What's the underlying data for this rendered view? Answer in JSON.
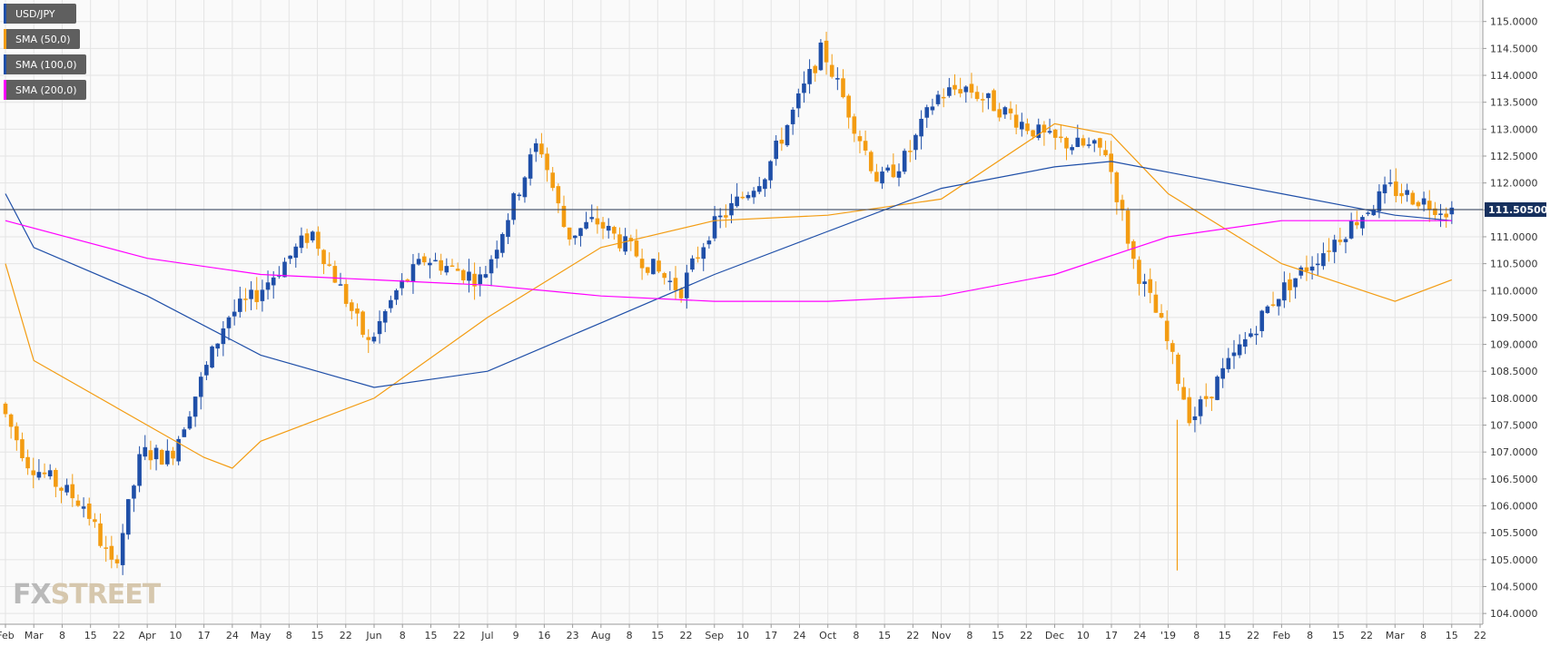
{
  "legend": [
    {
      "label": "USD/JPY",
      "color": "#1f4fa8"
    },
    {
      "label": "SMA (50,0)",
      "color": "#f39c12"
    },
    {
      "label": "SMA (100,0)",
      "color": "#1f4fa8"
    },
    {
      "label": "SMA (200,0)",
      "color": "#ff00ff"
    }
  ],
  "watermark": {
    "part1": "FX",
    "part2": "STREET"
  },
  "colors": {
    "background": "#ffffff",
    "plot_bg": "#fafafa",
    "grid": "#e4e4e4",
    "up": "#1f4fa8",
    "down": "#f39c12",
    "sma50": "#f39c12",
    "sma100": "#1f4fa8",
    "sma200": "#ff00ff",
    "price_line": "#2b3a55",
    "price_label_bg": "#16305e"
  },
  "chart_data": {
    "type": "line",
    "symbol": "USD/JPY",
    "ylim": [
      103.8,
      115.4
    ],
    "y_ticks": [
      "115.0000",
      "114.5000",
      "114.0000",
      "113.5000",
      "113.0000",
      "112.5000",
      "112.0000",
      "111.5000",
      "111.0000",
      "110.5000",
      "110.0000",
      "109.5000",
      "109.0000",
      "108.5000",
      "108.0000",
      "107.5000",
      "107.0000",
      "106.5000",
      "106.0000",
      "105.5000",
      "105.0000",
      "104.5000",
      "104.0000"
    ],
    "x_ticks": [
      "Feb",
      "Mar",
      "8",
      "15",
      "22",
      "Apr",
      "10",
      "17",
      "24",
      "May",
      "8",
      "15",
      "22",
      "Jun",
      "8",
      "15",
      "22",
      "Jul",
      "9",
      "16",
      "23",
      "Aug",
      "8",
      "15",
      "22",
      "Sep",
      "10",
      "17",
      "24",
      "Oct",
      "8",
      "15",
      "22",
      "Nov",
      "8",
      "15",
      "22",
      "Dec",
      "10",
      "17",
      "24",
      "'19",
      "8",
      "15",
      "22",
      "Feb",
      "8",
      "15",
      "22",
      "Mar",
      "8",
      "15",
      "22"
    ],
    "current_price": {
      "label": "111.50500",
      "value": 111.505
    },
    "candles_trend": {
      "name": "USD/JPY",
      "x": [
        "Feb",
        "Mar",
        "15",
        "22",
        "Apr",
        "10",
        "24",
        "May",
        "15",
        "Jun",
        "8",
        "15",
        "Jul",
        "16",
        "23",
        "Aug",
        "22",
        "Sep",
        "17",
        "Oct",
        "15",
        "22",
        "Nov",
        "8",
        "Dec",
        "17",
        "24",
        "'19",
        "8",
        "Feb",
        "Mar",
        "15"
      ],
      "values": [
        107.9,
        106.8,
        106.0,
        104.8,
        107.0,
        106.9,
        109.5,
        109.9,
        111.1,
        109.0,
        110.0,
        110.6,
        110.2,
        112.8,
        111.0,
        111.3,
        110.0,
        111.1,
        112.2,
        114.5,
        112.0,
        112.5,
        113.6,
        113.8,
        112.8,
        112.6,
        110.5,
        109.3,
        107.6,
        109.9,
        111.9,
        111.5
      ]
    },
    "series": [
      {
        "name": "SMA (50,0)",
        "x": [
          "Feb",
          "Mar",
          "Apr",
          "17",
          "24",
          "May",
          "Jun",
          "Jul",
          "Aug",
          "Sep",
          "Oct",
          "Nov",
          "Dec",
          "17",
          "'19",
          "Feb",
          "Mar",
          "15"
        ],
        "values": [
          110.5,
          108.7,
          107.5,
          106.9,
          106.7,
          107.2,
          108.0,
          109.5,
          110.8,
          111.3,
          111.4,
          111.7,
          113.1,
          112.9,
          111.8,
          110.5,
          109.8,
          110.2
        ]
      },
      {
        "name": "SMA (100,0)",
        "x": [
          "Feb",
          "Mar",
          "Apr",
          "May",
          "Jun",
          "Jul",
          "Aug",
          "Sep",
          "Oct",
          "Nov",
          "Dec",
          "17",
          "'19",
          "Feb",
          "Mar",
          "15"
        ],
        "values": [
          111.8,
          110.8,
          109.9,
          108.8,
          108.2,
          108.5,
          109.4,
          110.3,
          111.1,
          111.9,
          112.3,
          112.4,
          112.2,
          111.8,
          111.4,
          111.3
        ]
      },
      {
        "name": "SMA (200,0)",
        "x": [
          "Feb",
          "Apr",
          "May",
          "Jun",
          "Jul",
          "Aug",
          "Sep",
          "Oct",
          "Nov",
          "Dec",
          "'19",
          "Feb",
          "Mar",
          "15"
        ],
        "values": [
          111.3,
          110.6,
          110.3,
          110.2,
          110.1,
          109.9,
          109.8,
          109.8,
          109.9,
          110.3,
          111.0,
          111.3,
          111.3,
          111.3
        ]
      }
    ]
  }
}
